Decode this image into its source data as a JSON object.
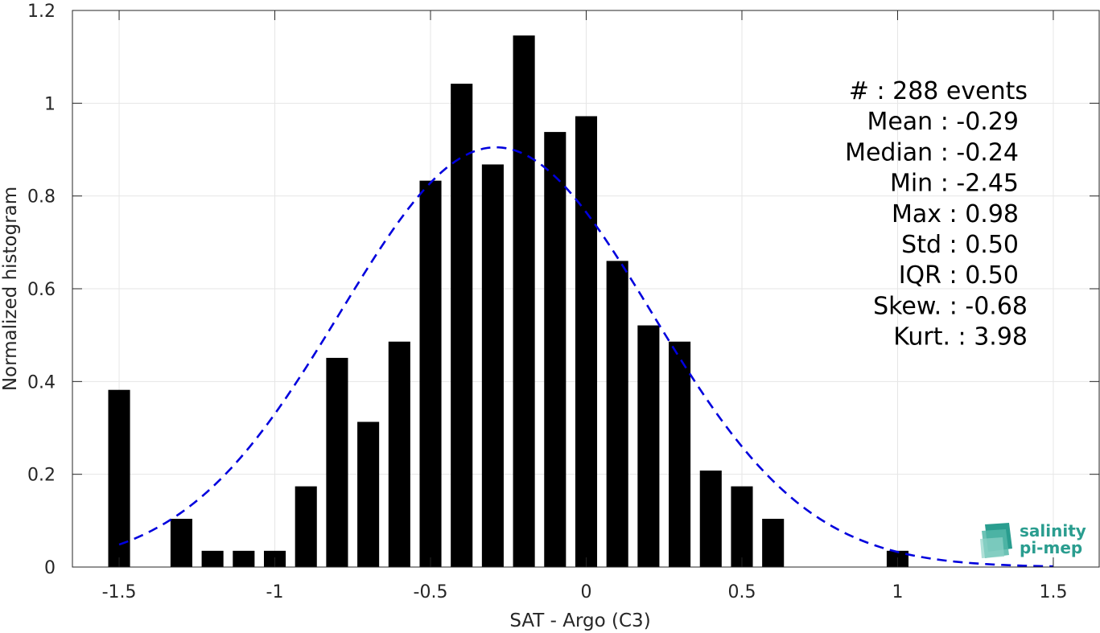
{
  "chart_data": {
    "type": "bar",
    "xlabel": "SAT - Argo (C3)",
    "ylabel": "Normalized histogram",
    "xlim": [
      -1.65,
      1.65
    ],
    "ylim": [
      0,
      1.2
    ],
    "xticks": [
      -1.5,
      -1,
      -0.5,
      0,
      0.5,
      1,
      1.5
    ],
    "xtick_labels": [
      "-1.5",
      "-1",
      "-0.5",
      "0",
      "0.5",
      "1",
      "1.5"
    ],
    "yticks": [
      0,
      0.2,
      0.4,
      0.6,
      0.8,
      1,
      1.2
    ],
    "ytick_labels": [
      "0",
      "0.2",
      "0.4",
      "0.6",
      "0.8",
      "1",
      "1.2"
    ],
    "grid": true,
    "bar_width": 0.07,
    "bar_color": "#000000",
    "bars": [
      {
        "x": -1.5,
        "y": 0.382
      },
      {
        "x": -1.3,
        "y": 0.104
      },
      {
        "x": -1.2,
        "y": 0.035
      },
      {
        "x": -1.1,
        "y": 0.035
      },
      {
        "x": -1.0,
        "y": 0.035
      },
      {
        "x": -0.9,
        "y": 0.174
      },
      {
        "x": -0.8,
        "y": 0.451
      },
      {
        "x": -0.7,
        "y": 0.313
      },
      {
        "x": -0.6,
        "y": 0.486
      },
      {
        "x": -0.5,
        "y": 0.833
      },
      {
        "x": -0.4,
        "y": 1.042
      },
      {
        "x": -0.3,
        "y": 0.868
      },
      {
        "x": -0.2,
        "y": 1.146
      },
      {
        "x": -0.1,
        "y": 0.938
      },
      {
        "x": 0.0,
        "y": 0.972
      },
      {
        "x": 0.1,
        "y": 0.66
      },
      {
        "x": 0.2,
        "y": 0.521
      },
      {
        "x": 0.3,
        "y": 0.486
      },
      {
        "x": 0.4,
        "y": 0.208
      },
      {
        "x": 0.5,
        "y": 0.174
      },
      {
        "x": 0.6,
        "y": 0.104
      },
      {
        "x": 1.0,
        "y": 0.035
      }
    ],
    "fit_curve": {
      "color": "#0000dd",
      "style": "dashed",
      "mean": -0.29,
      "std": 0.5,
      "peak": 0.905,
      "x_range": [
        -1.5,
        1.5
      ]
    }
  },
  "stats": [
    {
      "key": "#  ",
      "sep": ": ",
      "value": "288 events"
    },
    {
      "key": "Mean",
      "sep": " : ",
      "value": "-0.29"
    },
    {
      "key": "Median",
      "sep": " : ",
      "value": "-0.24"
    },
    {
      "key": "Min",
      "sep": " : ",
      "value": "-2.45"
    },
    {
      "key": "Max",
      "sep": " : ",
      "value": "0.98"
    },
    {
      "key": "Std",
      "sep": " : ",
      "value": "0.50"
    },
    {
      "key": "IQR",
      "sep": " : ",
      "value": "0.50"
    },
    {
      "key": "Skew.",
      "sep": " : ",
      "value": "-0.68"
    },
    {
      "key": "Kurt.",
      "sep": " : ",
      "value": "3.98"
    }
  ],
  "logo": {
    "line1": "salinity",
    "line2": "pi-mep",
    "color": "#2a9d8f"
  }
}
